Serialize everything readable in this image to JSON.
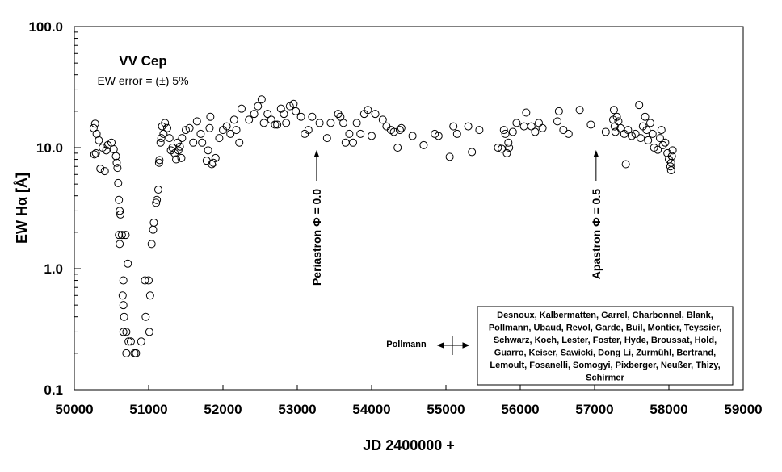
{
  "chart_data": {
    "type": "scatter",
    "title": "VV Cep",
    "subtitle": "EW error = (±) 5%",
    "xlabel": "JD 2400000 +",
    "ylabel": "EW Hα  [Å]",
    "xlim": [
      50000,
      59000
    ],
    "ylim": [
      0.1,
      100
    ],
    "yscale": "log",
    "x_ticks": [
      "50000",
      "51000",
      "52000",
      "53000",
      "54000",
      "55000",
      "56000",
      "57000",
      "58000",
      "59000"
    ],
    "y_ticks": [
      "0.1",
      "1.0",
      "10.0",
      "100.0"
    ],
    "grid": false,
    "annotations": [
      {
        "text": "Periastron  Φ = 0.0",
        "x": 53260,
        "arrow_to": 10
      },
      {
        "text": "Apastron  Φ = 0.5",
        "x": 57020,
        "arrow_to": 10
      }
    ],
    "legend": {
      "marker_label": "Pollmann",
      "observers": [
        "Desnoux, Kalbermatten, Garrel, Charbonnel, Blank,",
        "Pollmann, Ubaud, Revol, Garde, Buil, Montier, Teyssier,",
        "Schwarz, Koch, Lester, Foster, Hyde, Broussat, Hold,",
        "Guarro, Keiser, Sawicki,  Dong Li, Zurmühl, Bertrand,",
        "Lemoult, Fosanelli, Somogyi, Pixberger, Neußer, Thizy,",
        "Schirmer"
      ],
      "placement": "bottom-right"
    },
    "series": [
      {
        "name": "EW Hα",
        "points": [
          [
            50260,
            14.5
          ],
          [
            50280,
            15.8
          ],
          [
            50300,
            13
          ],
          [
            50270,
            8.8
          ],
          [
            50290,
            9
          ],
          [
            50330,
            11.5
          ],
          [
            50350,
            6.7
          ],
          [
            50380,
            10
          ],
          [
            50410,
            6.4
          ],
          [
            50430,
            9.5
          ],
          [
            50450,
            10.5
          ],
          [
            50500,
            11
          ],
          [
            50530,
            9.7
          ],
          [
            50560,
            8.5
          ],
          [
            50570,
            7.5
          ],
          [
            50580,
            6.8
          ],
          [
            50590,
            5.1
          ],
          [
            50600,
            3.7
          ],
          [
            50610,
            3
          ],
          [
            50620,
            2.8
          ],
          [
            50600,
            1.9
          ],
          [
            50610,
            1.6
          ],
          [
            50640,
            1.9
          ],
          [
            50690,
            1.9
          ],
          [
            50720,
            1.1
          ],
          [
            50650,
            0.6
          ],
          [
            50660,
            0.8
          ],
          [
            50660,
            0.5
          ],
          [
            50670,
            0.4
          ],
          [
            50660,
            0.3
          ],
          [
            50700,
            0.3
          ],
          [
            50700,
            0.2
          ],
          [
            50730,
            0.25
          ],
          [
            50760,
            0.25
          ],
          [
            50810,
            0.2
          ],
          [
            50830,
            0.2
          ],
          [
            50900,
            0.25
          ],
          [
            50950,
            0.8
          ],
          [
            50960,
            0.4
          ],
          [
            51000,
            0.8
          ],
          [
            51010,
            0.3
          ],
          [
            51020,
            0.6
          ],
          [
            51040,
            1.6
          ],
          [
            51060,
            2.1
          ],
          [
            51070,
            2.4
          ],
          [
            51100,
            3.5
          ],
          [
            51110,
            3.7
          ],
          [
            51130,
            4.5
          ],
          [
            51140,
            7.5
          ],
          [
            51145,
            7.9
          ],
          [
            51160,
            11
          ],
          [
            51170,
            12
          ],
          [
            51180,
            15
          ],
          [
            51200,
            13
          ],
          [
            51220,
            16
          ],
          [
            51250,
            14.5
          ],
          [
            51280,
            12
          ],
          [
            51300,
            9.5
          ],
          [
            51320,
            10
          ],
          [
            51350,
            9
          ],
          [
            51370,
            8
          ],
          [
            51390,
            11
          ],
          [
            51400,
            9.5
          ],
          [
            51420,
            10.2
          ],
          [
            51440,
            8.2
          ],
          [
            51450,
            12
          ],
          [
            51500,
            14
          ],
          [
            51550,
            14.5
          ],
          [
            51600,
            11
          ],
          [
            51650,
            16.5
          ],
          [
            51700,
            13
          ],
          [
            51720,
            11
          ],
          [
            51780,
            7.8
          ],
          [
            51800,
            9.5
          ],
          [
            51820,
            14.5
          ],
          [
            51830,
            18
          ],
          [
            51850,
            7.3
          ],
          [
            51870,
            7.5
          ],
          [
            51900,
            8.2
          ],
          [
            51950,
            12
          ],
          [
            52000,
            14
          ],
          [
            52050,
            15
          ],
          [
            52100,
            13
          ],
          [
            52150,
            17
          ],
          [
            52180,
            14
          ],
          [
            52220,
            11
          ],
          [
            52250,
            21
          ],
          [
            52350,
            17
          ],
          [
            52420,
            19
          ],
          [
            52470,
            22
          ],
          [
            52520,
            25
          ],
          [
            52550,
            16
          ],
          [
            52600,
            19
          ],
          [
            52650,
            17
          ],
          [
            52700,
            15.5
          ],
          [
            52730,
            15.5
          ],
          [
            52780,
            21
          ],
          [
            52820,
            19
          ],
          [
            52850,
            16
          ],
          [
            52900,
            22
          ],
          [
            52950,
            23
          ],
          [
            52980,
            20
          ],
          [
            53050,
            18
          ],
          [
            53100,
            13
          ],
          [
            53150,
            14
          ],
          [
            53200,
            18
          ],
          [
            53300,
            16
          ],
          [
            53400,
            12
          ],
          [
            53450,
            16
          ],
          [
            53550,
            19
          ],
          [
            53580,
            18
          ],
          [
            53620,
            16
          ],
          [
            53650,
            11
          ],
          [
            53700,
            13
          ],
          [
            53750,
            11
          ],
          [
            53800,
            16
          ],
          [
            53850,
            13
          ],
          [
            53900,
            19
          ],
          [
            53950,
            20.5
          ],
          [
            54000,
            12.5
          ],
          [
            54050,
            19
          ],
          [
            54150,
            17
          ],
          [
            54200,
            15
          ],
          [
            54260,
            14
          ],
          [
            54300,
            13.5
          ],
          [
            54350,
            10
          ],
          [
            54380,
            14
          ],
          [
            54400,
            14.5
          ],
          [
            54550,
            12.5
          ],
          [
            54700,
            10.5
          ],
          [
            54850,
            13
          ],
          [
            54900,
            12.5
          ],
          [
            55050,
            8.4
          ],
          [
            55100,
            15
          ],
          [
            55150,
            13
          ],
          [
            55300,
            15
          ],
          [
            55350,
            9.2
          ],
          [
            55450,
            14
          ],
          [
            55700,
            10
          ],
          [
            55750,
            9.8
          ],
          [
            55780,
            14
          ],
          [
            55800,
            13
          ],
          [
            55820,
            9
          ],
          [
            55840,
            11
          ],
          [
            55850,
            10
          ],
          [
            55900,
            13.5
          ],
          [
            55950,
            16
          ],
          [
            56050,
            15
          ],
          [
            56080,
            19.5
          ],
          [
            56150,
            15
          ],
          [
            56200,
            13.5
          ],
          [
            56250,
            16
          ],
          [
            56300,
            14.5
          ],
          [
            56500,
            16.5
          ],
          [
            56520,
            20
          ],
          [
            56580,
            14
          ],
          [
            56650,
            13
          ],
          [
            56800,
            20.5
          ],
          [
            56950,
            15.5
          ],
          [
            57150,
            13.5
          ],
          [
            57250,
            17
          ],
          [
            57260,
            20.5
          ],
          [
            57270,
            15
          ],
          [
            57280,
            13.5
          ],
          [
            57300,
            18
          ],
          [
            57320,
            16.5
          ],
          [
            57350,
            14.5
          ],
          [
            57400,
            13
          ],
          [
            57420,
            7.3
          ],
          [
            57450,
            14
          ],
          [
            57500,
            12.5
          ],
          [
            57550,
            13
          ],
          [
            57600,
            22.5
          ],
          [
            57620,
            12
          ],
          [
            57650,
            15
          ],
          [
            57680,
            18
          ],
          [
            57700,
            14
          ],
          [
            57720,
            11.5
          ],
          [
            57750,
            16
          ],
          [
            57780,
            13
          ],
          [
            57800,
            10
          ],
          [
            57850,
            9.6
          ],
          [
            57880,
            12
          ],
          [
            57900,
            14
          ],
          [
            57920,
            10.5
          ],
          [
            57950,
            11
          ],
          [
            57980,
            9
          ],
          [
            58000,
            8
          ],
          [
            58020,
            7
          ],
          [
            58030,
            6.5
          ],
          [
            58040,
            8.5
          ],
          [
            58050,
            9.5
          ],
          [
            58030,
            7.5
          ]
        ]
      }
    ]
  }
}
